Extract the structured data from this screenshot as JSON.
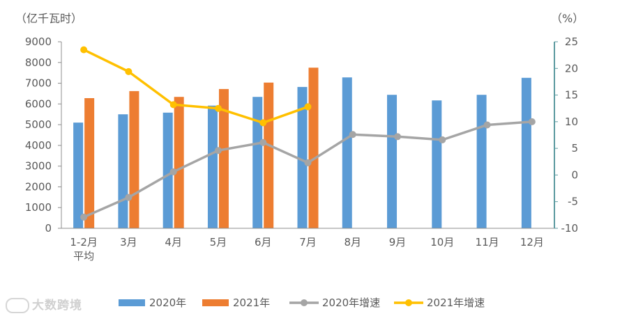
{
  "chart_data": {
    "type": "bar",
    "left_axis_unit": "（亿千瓦时）",
    "right_axis_unit": "（%）",
    "categories": [
      "1-2月\n平均",
      "3月",
      "4月",
      "5月",
      "6月",
      "7月",
      "8月",
      "9月",
      "10月",
      "11月",
      "12月"
    ],
    "left_axis": {
      "min": 0,
      "max": 9000,
      "step": 1000,
      "ticks": [
        "0",
        "1000",
        "2000",
        "3000",
        "4000",
        "5000",
        "6000",
        "7000",
        "8000",
        "9000"
      ]
    },
    "right_axis": {
      "min": -10,
      "max": 25,
      "step": 5,
      "ticks": [
        "-10",
        "-5",
        "0",
        "5",
        "10",
        "15",
        "20",
        "25"
      ]
    },
    "series": [
      {
        "name": "2020年",
        "kind": "bar",
        "axis": "left",
        "color": "#5b9bd5",
        "values": [
          5100,
          5500,
          5580,
          5920,
          6340,
          6820,
          7280,
          6440,
          6170,
          6440,
          7260
        ]
      },
      {
        "name": "2021年",
        "kind": "bar",
        "axis": "left",
        "color": "#ed7d31",
        "values": [
          6280,
          6620,
          6340,
          6720,
          7030,
          7750,
          null,
          null,
          null,
          null,
          null
        ]
      },
      {
        "name": "2020年增速",
        "kind": "line",
        "axis": "right",
        "color": "#a5a5a5",
        "values": [
          -7.9,
          -4.2,
          0.6,
          4.6,
          6.1,
          2.3,
          7.6,
          7.2,
          6.6,
          9.4,
          10.0
        ]
      },
      {
        "name": "2021年增速",
        "kind": "line",
        "axis": "right",
        "color": "#ffc000",
        "values": [
          23.5,
          19.4,
          13.2,
          12.5,
          9.8,
          12.8,
          null,
          null,
          null,
          null,
          null
        ]
      }
    ],
    "grid": false,
    "legend_position": "bottom"
  },
  "watermark": {
    "text": "大数跨境"
  }
}
